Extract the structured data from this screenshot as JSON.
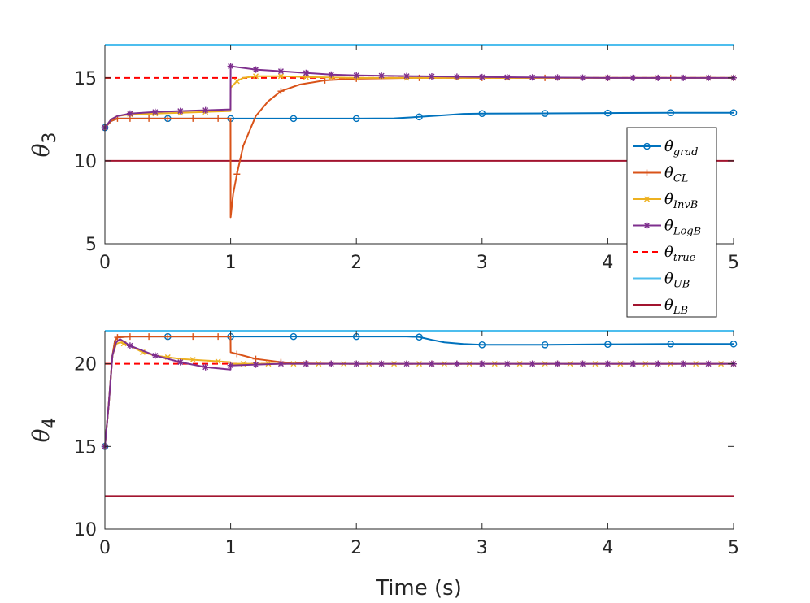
{
  "chart_data": [
    {
      "type": "line",
      "panel": "top",
      "ylabel": "θ",
      "ylabel_sub": "3",
      "xlim": [
        0,
        5
      ],
      "ylim": [
        5,
        17
      ],
      "xticks": [
        "0",
        "1",
        "2",
        "3",
        "4",
        "5"
      ],
      "yticks": [
        "5",
        "10",
        "15"
      ],
      "ytick_values": [
        5,
        10,
        15
      ],
      "series": [
        {
          "key": "grad",
          "color": "#0072BD",
          "marker": "circle",
          "x": [
            0,
            0.05,
            0.1,
            0.2,
            0.35,
            0.5,
            0.7,
            0.9,
            1.0,
            1.5,
            2.0,
            2.3,
            2.5,
            2.7,
            2.85,
            3.0,
            3.5,
            4.0,
            4.5,
            5.0
          ],
          "y": [
            12,
            12.4,
            12.55,
            12.55,
            12.55,
            12.55,
            12.55,
            12.55,
            12.55,
            12.55,
            12.55,
            12.56,
            12.65,
            12.75,
            12.83,
            12.85,
            12.86,
            12.88,
            12.9,
            12.9
          ],
          "markers_x": [
            0,
            0.5,
            1,
            1.5,
            2,
            2.5,
            3,
            3.5,
            4,
            4.5,
            5
          ]
        },
        {
          "key": "CL",
          "color": "#D95319",
          "marker": "plus",
          "x": [
            0,
            0.05,
            0.1,
            0.2,
            0.35,
            0.5,
            0.7,
            0.9,
            0.999,
            1.0,
            1.02,
            1.05,
            1.1,
            1.2,
            1.3,
            1.4,
            1.55,
            1.75,
            2.0,
            2.5,
            3.0,
            4.0,
            5.0
          ],
          "y": [
            12,
            12.4,
            12.55,
            12.55,
            12.55,
            12.55,
            12.55,
            12.55,
            12.55,
            6.6,
            8.0,
            9.2,
            10.9,
            12.7,
            13.6,
            14.2,
            14.6,
            14.85,
            14.95,
            15.0,
            15.0,
            15.0,
            15.0
          ],
          "markers_x": [
            0,
            0.1,
            0.2,
            0.35,
            0.5,
            0.7,
            0.9,
            1.05,
            1.4,
            1.75,
            2.0,
            2.5,
            3.0,
            3.5,
            4.0,
            4.5,
            5.0
          ]
        },
        {
          "key": "InvB",
          "color": "#EDB120",
          "marker": "x",
          "x": [
            0,
            0.05,
            0.1,
            0.2,
            0.4,
            0.6,
            0.8,
            0.999,
            1.0,
            1.05,
            1.1,
            1.2,
            1.4,
            1.6,
            2.0,
            3.0,
            4.0,
            5.0
          ],
          "y": [
            12,
            12.5,
            12.7,
            12.8,
            12.85,
            12.9,
            12.95,
            13.0,
            14.4,
            14.8,
            15.0,
            15.1,
            15.1,
            15.05,
            15.0,
            15.0,
            15.0,
            15.0
          ],
          "markers_x": [
            0,
            0.2,
            0.4,
            0.6,
            0.8,
            1.05,
            1.2,
            1.4,
            1.6,
            1.8,
            2.0,
            2.4,
            2.8,
            3.2,
            3.6,
            4.0,
            4.4,
            4.8,
            5.0
          ]
        },
        {
          "key": "LogB",
          "color": "#7E2F8E",
          "marker": "asterisk",
          "x": [
            0,
            0.05,
            0.1,
            0.2,
            0.4,
            0.6,
            0.8,
            0.999,
            1.0,
            1.05,
            1.2,
            1.4,
            1.6,
            1.8,
            2.0,
            2.5,
            3.0,
            4.0,
            5.0
          ],
          "y": [
            12,
            12.5,
            12.7,
            12.85,
            12.95,
            13.0,
            13.05,
            13.1,
            15.7,
            15.65,
            15.5,
            15.4,
            15.3,
            15.2,
            15.15,
            15.1,
            15.05,
            15.0,
            15.0
          ],
          "markers_x": [
            0,
            0.2,
            0.4,
            0.6,
            0.8,
            1.0,
            1.2,
            1.4,
            1.6,
            1.8,
            2.0,
            2.2,
            2.4,
            2.6,
            2.8,
            3.0,
            3.2,
            3.4,
            3.6,
            3.8,
            4.0,
            4.2,
            4.4,
            4.6,
            4.8,
            5.0
          ]
        },
        {
          "key": "true",
          "color": "#FF0000",
          "dash": true,
          "x": [
            0,
            5
          ],
          "y": [
            15,
            15
          ]
        },
        {
          "key": "UB",
          "color": "#4DBEEE",
          "x": [
            0,
            5
          ],
          "y": [
            17,
            17
          ]
        },
        {
          "key": "LB",
          "color": "#A2142F",
          "x": [
            0,
            5
          ],
          "y": [
            10,
            10
          ]
        }
      ]
    },
    {
      "type": "line",
      "panel": "bottom",
      "xlabel": "Time (s)",
      "ylabel": "θ",
      "ylabel_sub": "4",
      "xlim": [
        0,
        5
      ],
      "ylim": [
        10,
        22
      ],
      "xticks": [
        "0",
        "1",
        "2",
        "3",
        "4",
        "5"
      ],
      "yticks": [
        "10",
        "15",
        "20"
      ],
      "ytick_values": [
        10,
        15,
        20
      ],
      "series": [
        {
          "key": "grad",
          "color": "#0072BD",
          "marker": "circle",
          "x": [
            0,
            0.03,
            0.06,
            0.08,
            0.1,
            0.2,
            0.5,
            1.0,
            1.5,
            2.0,
            2.4,
            2.5,
            2.6,
            2.7,
            2.85,
            3.0,
            3.5,
            4.0,
            4.5,
            5.0
          ],
          "y": [
            15,
            17.5,
            20.5,
            21.4,
            21.6,
            21.65,
            21.65,
            21.65,
            21.65,
            21.65,
            21.65,
            21.62,
            21.45,
            21.3,
            21.2,
            21.15,
            21.15,
            21.18,
            21.2,
            21.2
          ],
          "markers_x": [
            0,
            0.5,
            1,
            1.5,
            2,
            2.5,
            3,
            3.5,
            4,
            4.5,
            5
          ]
        },
        {
          "key": "CL",
          "color": "#D95319",
          "marker": "plus",
          "x": [
            0,
            0.03,
            0.06,
            0.08,
            0.1,
            0.2,
            0.5,
            0.999,
            1.0,
            1.05,
            1.1,
            1.2,
            1.4,
            1.6,
            2.0,
            3.0,
            5.0
          ],
          "y": [
            15,
            17.5,
            20.5,
            21.4,
            21.6,
            21.65,
            21.65,
            21.65,
            20.7,
            20.6,
            20.5,
            20.3,
            20.1,
            20.02,
            20.0,
            20.0,
            20.0
          ],
          "markers_x": [
            0,
            0.1,
            0.2,
            0.35,
            0.5,
            0.7,
            0.9,
            1.05,
            1.2,
            1.4,
            1.6,
            1.8,
            2.0,
            2.2,
            2.4,
            2.6,
            2.8,
            3.0,
            3.2,
            3.4,
            3.6,
            3.8,
            4.0,
            4.2,
            4.4,
            4.6,
            4.8,
            5.0
          ]
        },
        {
          "key": "InvB",
          "color": "#EDB120",
          "marker": "x",
          "x": [
            0,
            0.03,
            0.06,
            0.09,
            0.12,
            0.2,
            0.3,
            0.4,
            0.6,
            0.8,
            0.999,
            1.0,
            1.2,
            1.4,
            1.6,
            2.0,
            3.0,
            5.0
          ],
          "y": [
            15,
            17.5,
            20.5,
            21.2,
            21.3,
            21.1,
            20.7,
            20.5,
            20.3,
            20.2,
            20.1,
            20.0,
            20.0,
            20.0,
            20.0,
            20.0,
            20.0,
            20.0
          ],
          "markers_x": [
            0,
            0.15,
            0.3,
            0.5,
            0.7,
            0.9,
            1.1,
            1.3,
            1.5,
            1.7,
            1.9,
            2.1,
            2.3,
            2.5,
            2.7,
            2.9,
            3.1,
            3.3,
            3.5,
            3.7,
            3.9,
            4.1,
            4.3,
            4.5,
            4.7,
            4.9,
            5.0
          ]
        },
        {
          "key": "LogB",
          "color": "#7E2F8E",
          "marker": "asterisk",
          "x": [
            0,
            0.03,
            0.06,
            0.09,
            0.12,
            0.2,
            0.3,
            0.4,
            0.6,
            0.8,
            0.999,
            1.0,
            1.2,
            1.4,
            1.6,
            2.0,
            3.0,
            5.0
          ],
          "y": [
            15,
            17.5,
            20.5,
            21.3,
            21.5,
            21.1,
            20.8,
            20.5,
            20.1,
            19.8,
            19.65,
            19.9,
            19.95,
            20.0,
            20.0,
            20.0,
            20.0,
            20.0
          ],
          "markers_x": [
            0,
            0.2,
            0.4,
            0.6,
            0.8,
            1.0,
            1.2,
            1.4,
            1.6,
            1.8,
            2.0,
            2.2,
            2.4,
            2.6,
            2.8,
            3.0,
            3.2,
            3.4,
            3.6,
            3.8,
            4.0,
            4.2,
            4.4,
            4.6,
            4.8,
            5.0
          ]
        },
        {
          "key": "true",
          "color": "#FF0000",
          "dash": true,
          "x": [
            0,
            5
          ],
          "y": [
            20,
            20
          ]
        },
        {
          "key": "UB",
          "color": "#4DBEEE",
          "x": [
            0,
            5
          ],
          "y": [
            22,
            22
          ]
        },
        {
          "key": "LB",
          "color": "#A2142F",
          "x": [
            0,
            5
          ],
          "y": [
            12,
            12
          ]
        }
      ]
    }
  ],
  "legend": {
    "placement": "right",
    "entries": [
      {
        "key": "grad",
        "symbol": "θ̂",
        "sub": "grad",
        "color": "#0072BD",
        "marker": "circle"
      },
      {
        "key": "CL",
        "symbol": "θ̂",
        "sub": "CL",
        "color": "#D95319",
        "marker": "plus"
      },
      {
        "key": "InvB",
        "symbol": "θ̂",
        "sub": "InvB",
        "color": "#EDB120",
        "marker": "x"
      },
      {
        "key": "LogB",
        "symbol": "θ̂",
        "sub": "LogB",
        "color": "#7E2F8E",
        "marker": "asterisk"
      },
      {
        "key": "true",
        "symbol": "θ",
        "sub": "true",
        "color": "#FF0000",
        "dash": true
      },
      {
        "key": "UB",
        "symbol": "θ",
        "sub": "UB",
        "color": "#4DBEEE"
      },
      {
        "key": "LB",
        "symbol": "θ",
        "sub": "LB",
        "color": "#A2142F"
      }
    ]
  }
}
